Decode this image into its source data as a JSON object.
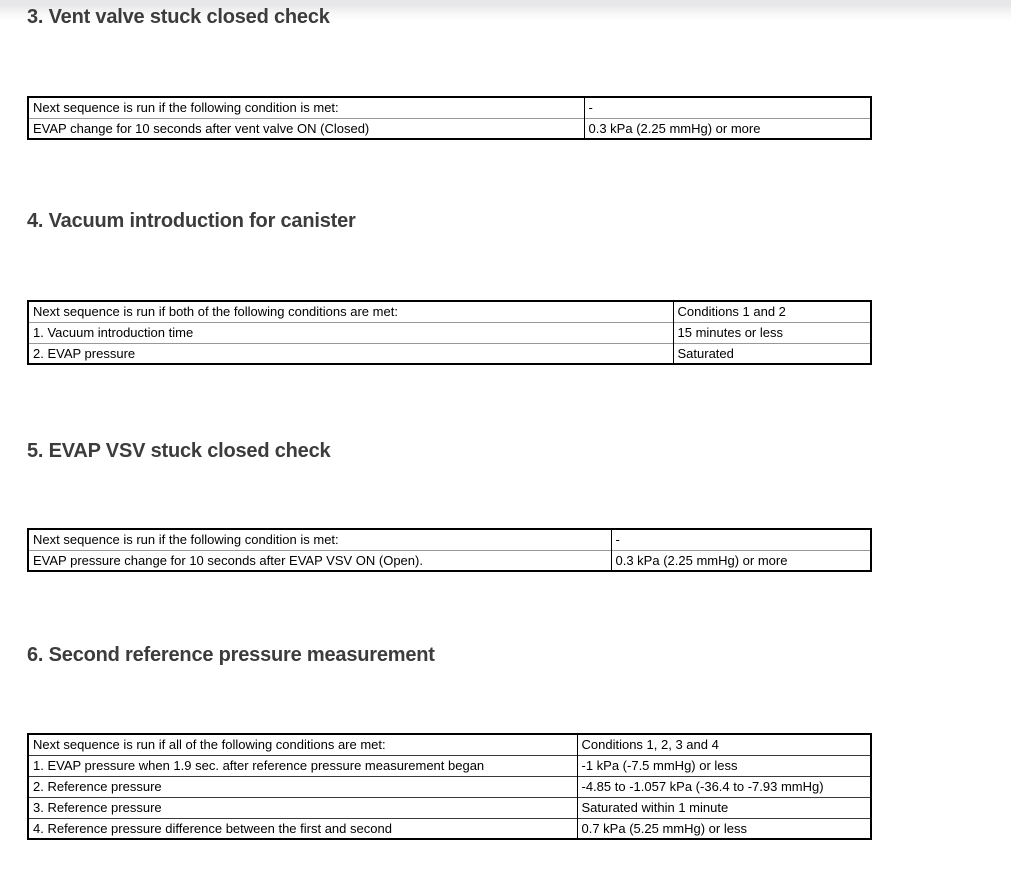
{
  "page": {
    "background": "#ffffff",
    "top_shadow_color": "#e7e7e9",
    "table_border_color": "#000000",
    "heading_color": "#3c3c3c"
  },
  "sections": [
    {
      "heading": "3. Vent valve stuck closed check",
      "rows": [
        {
          "label": "Next sequence is run if the following condition is met:",
          "value": "-"
        },
        {
          "label": "EVAP change for 10 seconds after vent valve ON (Closed)",
          "value": "0.3 kPa (2.25 mmHg) or more"
        }
      ]
    },
    {
      "heading": "4. Vacuum introduction for canister",
      "rows": [
        {
          "label": "Next sequence is run if both of the following conditions are met:",
          "value": "Conditions 1 and 2"
        },
        {
          "label": "1. Vacuum introduction time",
          "value": "15 minutes or less"
        },
        {
          "label": "2. EVAP pressure",
          "value": "Saturated"
        }
      ]
    },
    {
      "heading": "5. EVAP VSV stuck closed check",
      "rows": [
        {
          "label": "Next sequence is run if the following condition is met:",
          "value": "-"
        },
        {
          "label": "EVAP pressure change for 10 seconds after EVAP VSV ON (Open).",
          "value": "0.3 kPa (2.25 mmHg) or more"
        }
      ]
    },
    {
      "heading": "6. Second reference pressure measurement",
      "rows": [
        {
          "label": "Next sequence is run if all of the following conditions are met:",
          "value": "Conditions 1, 2, 3 and 4"
        },
        {
          "label": "1. EVAP pressure when 1.9 sec. after reference pressure measurement began",
          "value": "-1 kPa (-7.5 mmHg) or less"
        },
        {
          "label": "2. Reference pressure",
          "value": "-4.85 to -1.057 kPa (-36.4 to -7.93 mmHg)"
        },
        {
          "label": "3. Reference pressure",
          "value": "Saturated within 1 minute"
        },
        {
          "label": "4. Reference pressure difference between the first and second",
          "value": "0.7 kPa (5.25 mmHg) or less"
        }
      ]
    }
  ]
}
